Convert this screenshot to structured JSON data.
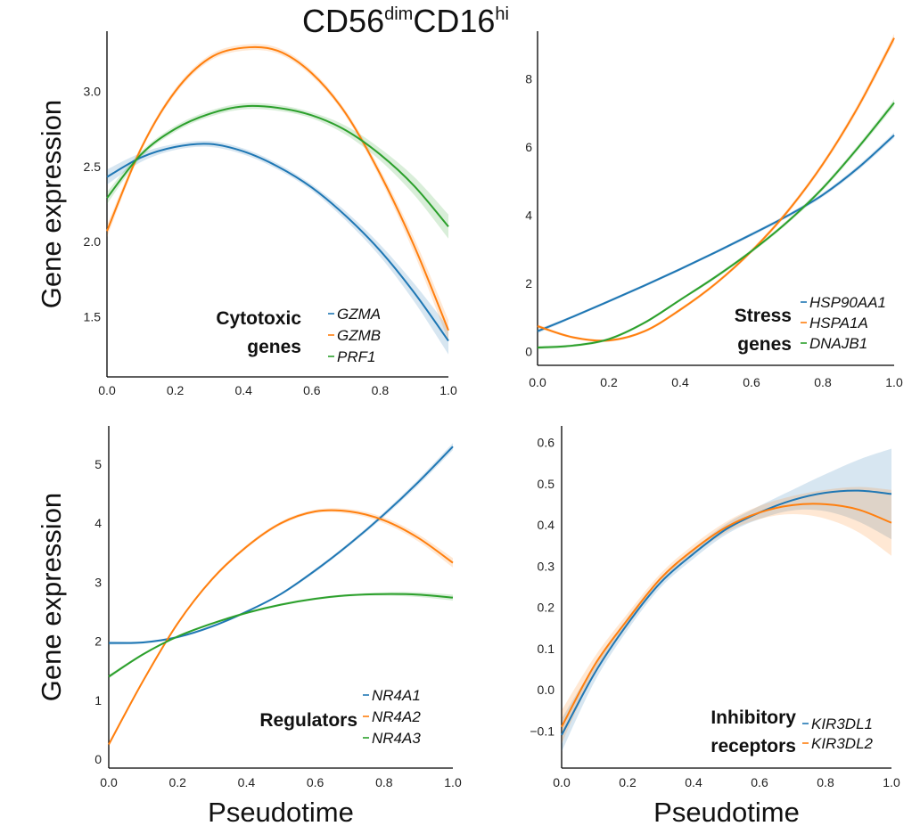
{
  "figure_title": {
    "main1": "CD56",
    "sup1": "dim",
    "main2": "CD16",
    "sup2": "hi"
  },
  "shared_labels": {
    "ylabel": "Gene expression",
    "xlabel": "Pseudotime"
  },
  "colors": {
    "blue": "#1f77b4",
    "orange": "#ff7f0e",
    "green": "#2ca02c"
  },
  "chart_data": [
    {
      "type": "line",
      "title": "",
      "group_label": [
        "Cytotoxic",
        "genes"
      ],
      "xlabel": "",
      "ylabel": "Gene expression",
      "xlim": [
        0,
        1
      ],
      "ylim": [
        1.1,
        3.4
      ],
      "x_ticks": [
        "0.0",
        "0.2",
        "0.4",
        "0.6",
        "0.8",
        "1.0"
      ],
      "y_ticks": [
        "1.5",
        "2.0",
        "2.5",
        "3.0"
      ],
      "x": [
        0,
        0.1,
        0.2,
        0.3,
        0.4,
        0.5,
        0.6,
        0.7,
        0.8,
        0.9,
        1.0
      ],
      "series": [
        {
          "name": "GZMA",
          "color": "#1f77b4",
          "values": [
            2.43,
            2.56,
            2.63,
            2.65,
            2.6,
            2.5,
            2.36,
            2.17,
            1.94,
            1.66,
            1.34
          ],
          "ci_halfwidth": [
            0.05,
            0.03,
            0.02,
            0.02,
            0.02,
            0.02,
            0.02,
            0.03,
            0.04,
            0.06,
            0.09
          ]
        },
        {
          "name": "GZMB",
          "color": "#ff7f0e",
          "values": [
            2.07,
            2.62,
            3.0,
            3.22,
            3.29,
            3.27,
            3.12,
            2.85,
            2.45,
            1.97,
            1.41
          ],
          "ci_halfwidth": [
            0.04,
            0.02,
            0.02,
            0.02,
            0.02,
            0.02,
            0.02,
            0.02,
            0.03,
            0.05,
            0.07
          ]
        },
        {
          "name": "PRF1",
          "color": "#2ca02c",
          "values": [
            2.29,
            2.58,
            2.75,
            2.85,
            2.9,
            2.89,
            2.84,
            2.74,
            2.58,
            2.37,
            2.1
          ],
          "ci_halfwidth": [
            0.04,
            0.02,
            0.02,
            0.02,
            0.02,
            0.02,
            0.02,
            0.03,
            0.04,
            0.06,
            0.08
          ]
        }
      ]
    },
    {
      "type": "line",
      "title": "",
      "group_label": [
        "Stress",
        "genes"
      ],
      "xlabel": "",
      "ylabel": "",
      "xlim": [
        0,
        1
      ],
      "ylim": [
        -0.4,
        9.4
      ],
      "x_ticks": [
        "0.0",
        "0.2",
        "0.4",
        "0.6",
        "0.8",
        "1.0"
      ],
      "y_ticks": [
        "0",
        "2",
        "4",
        "6",
        "8"
      ],
      "x": [
        0,
        0.1,
        0.2,
        0.3,
        0.4,
        0.5,
        0.6,
        0.7,
        0.8,
        0.9,
        1.0
      ],
      "series": [
        {
          "name": "HSP90AA1",
          "color": "#1f77b4",
          "values": [
            0.6,
            1.03,
            1.48,
            1.94,
            2.42,
            2.92,
            3.44,
            3.98,
            4.6,
            5.4,
            6.35
          ],
          "ci_halfwidth": [
            0.06,
            0.04,
            0.04,
            0.04,
            0.04,
            0.04,
            0.05,
            0.05,
            0.06,
            0.07,
            0.08
          ]
        },
        {
          "name": "HSPA1A",
          "color": "#ff7f0e",
          "values": [
            0.75,
            0.42,
            0.33,
            0.6,
            1.23,
            2.0,
            2.95,
            4.1,
            5.5,
            7.2,
            9.2
          ],
          "ci_halfwidth": [
            0.05,
            0.04,
            0.04,
            0.04,
            0.05,
            0.05,
            0.06,
            0.07,
            0.08,
            0.1,
            0.12
          ]
        },
        {
          "name": "DNAJB1",
          "color": "#2ca02c",
          "values": [
            0.12,
            0.18,
            0.37,
            0.85,
            1.52,
            2.2,
            2.95,
            3.8,
            4.8,
            6.0,
            7.3
          ],
          "ci_halfwidth": [
            0.05,
            0.04,
            0.04,
            0.04,
            0.04,
            0.05,
            0.05,
            0.06,
            0.07,
            0.08,
            0.1
          ]
        }
      ]
    },
    {
      "type": "line",
      "title": "",
      "group_label": [
        "Regulators"
      ],
      "xlabel": "Pseudotime",
      "ylabel": "Gene expression",
      "xlim": [
        0,
        1
      ],
      "ylim": [
        -0.15,
        5.65
      ],
      "x_ticks": [
        "0.0",
        "0.2",
        "0.4",
        "0.6",
        "0.8",
        "1.0"
      ],
      "y_ticks": [
        "0",
        "1",
        "2",
        "3",
        "4",
        "5"
      ],
      "x": [
        0,
        0.1,
        0.2,
        0.3,
        0.4,
        0.5,
        0.6,
        0.7,
        0.8,
        0.9,
        1.0
      ],
      "series": [
        {
          "name": "NR4A1",
          "color": "#1f77b4",
          "values": [
            1.97,
            1.98,
            2.07,
            2.25,
            2.5,
            2.8,
            3.2,
            3.65,
            4.15,
            4.7,
            5.3
          ],
          "ci_halfwidth": [
            0.03,
            0.02,
            0.02,
            0.02,
            0.02,
            0.02,
            0.03,
            0.03,
            0.04,
            0.05,
            0.06
          ]
        },
        {
          "name": "NR4A2",
          "color": "#ff7f0e",
          "values": [
            0.25,
            1.33,
            2.3,
            3.05,
            3.6,
            4.0,
            4.2,
            4.2,
            4.05,
            3.75,
            3.33
          ],
          "ci_halfwidth": [
            0.04,
            0.03,
            0.03,
            0.03,
            0.03,
            0.03,
            0.03,
            0.04,
            0.05,
            0.06,
            0.08
          ]
        },
        {
          "name": "NR4A3",
          "color": "#2ca02c",
          "values": [
            1.4,
            1.78,
            2.08,
            2.3,
            2.48,
            2.62,
            2.72,
            2.78,
            2.8,
            2.79,
            2.74
          ],
          "ci_halfwidth": [
            0.03,
            0.02,
            0.02,
            0.02,
            0.02,
            0.02,
            0.02,
            0.02,
            0.03,
            0.04,
            0.05
          ]
        }
      ]
    },
    {
      "type": "line",
      "title": "",
      "group_label": [
        "Inhibitory",
        "receptors"
      ],
      "xlabel": "Pseudotime",
      "ylabel": "",
      "xlim": [
        0,
        1
      ],
      "ylim": [
        -0.19,
        0.64
      ],
      "x_ticks": [
        "0.0",
        "0.2",
        "0.4",
        "0.6",
        "0.8",
        "1.0"
      ],
      "y_ticks": [
        "−0.1",
        "0.0",
        "0.1",
        "0.2",
        "0.3",
        "0.4",
        "0.5",
        "0.6"
      ],
      "x": [
        0,
        0.1,
        0.2,
        0.3,
        0.4,
        0.5,
        0.6,
        0.7,
        0.8,
        0.9,
        1.0
      ],
      "series": [
        {
          "name": "KIR3DL1",
          "color": "#1f77b4",
          "values": [
            -0.11,
            0.04,
            0.16,
            0.26,
            0.33,
            0.39,
            0.43,
            0.46,
            0.478,
            0.483,
            0.475
          ],
          "ci_halfwidth": [
            0.04,
            0.02,
            0.015,
            0.012,
            0.012,
            0.013,
            0.016,
            0.025,
            0.045,
            0.075,
            0.11
          ]
        },
        {
          "name": "KIR3DL2",
          "color": "#ff7f0e",
          "values": [
            -0.09,
            0.06,
            0.17,
            0.27,
            0.34,
            0.395,
            0.43,
            0.448,
            0.45,
            0.437,
            0.405
          ],
          "ci_halfwidth": [
            0.04,
            0.02,
            0.015,
            0.012,
            0.012,
            0.013,
            0.016,
            0.022,
            0.035,
            0.055,
            0.08
          ]
        }
      ]
    }
  ]
}
